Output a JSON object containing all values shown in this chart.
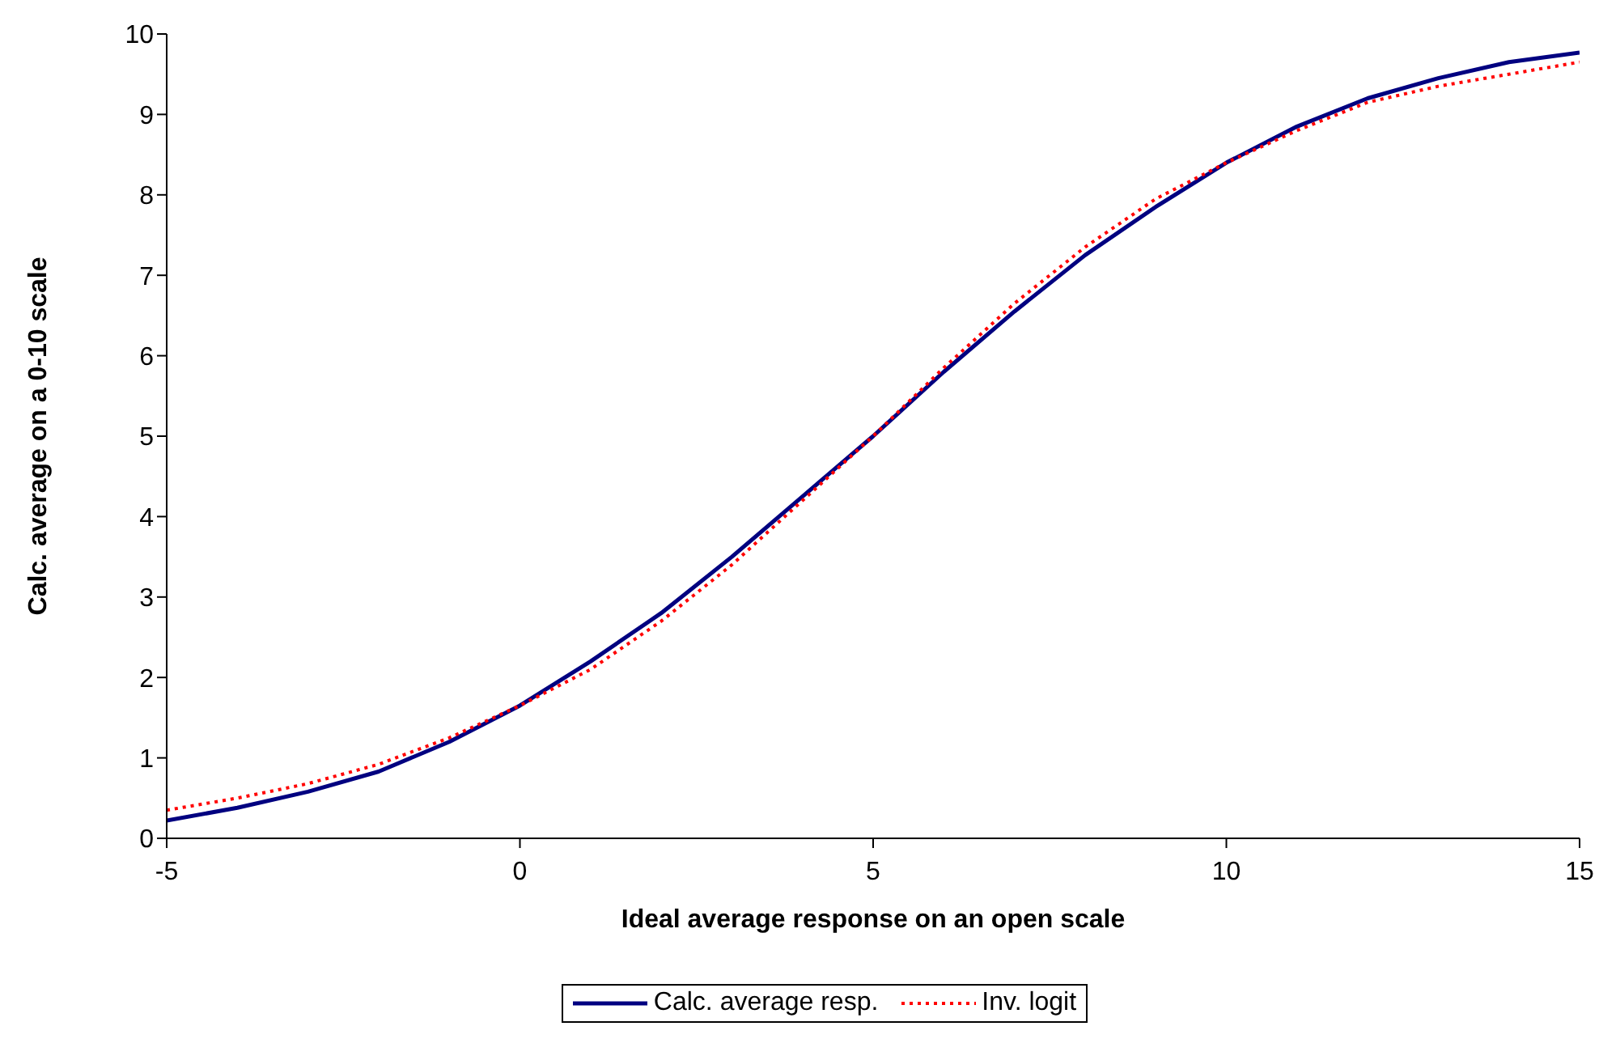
{
  "chart_data": {
    "type": "line",
    "xlabel": "Ideal average response on an open scale",
    "ylabel": "Calc. average on a  0-10 scale",
    "x": [
      -5,
      -4,
      -3,
      -2,
      -1,
      0,
      1,
      2,
      3,
      4,
      5,
      6,
      7,
      8,
      9,
      10,
      11,
      12,
      13,
      14,
      15
    ],
    "series": [
      {
        "name": "Calc. average resp.",
        "color": "#000080",
        "line_style": "solid",
        "values": [
          0.22,
          0.38,
          0.58,
          0.83,
          1.2,
          1.65,
          2.2,
          2.8,
          3.5,
          4.25,
          5.0,
          5.8,
          6.55,
          7.25,
          7.85,
          8.4,
          8.85,
          9.2,
          9.45,
          9.65,
          9.77
        ]
      },
      {
        "name": "Inv. logit",
        "color": "#ff0000",
        "line_style": "dotted",
        "values": [
          0.35,
          0.5,
          0.68,
          0.92,
          1.25,
          1.65,
          2.1,
          2.7,
          3.4,
          4.2,
          5.0,
          5.85,
          6.65,
          7.35,
          7.95,
          8.4,
          8.8,
          9.15,
          9.35,
          9.5,
          9.65
        ]
      }
    ],
    "xlim": [
      -5,
      15
    ],
    "xticks": [
      -5,
      0,
      5,
      10,
      15
    ],
    "ylim": [
      0,
      10
    ],
    "yticks": [
      0,
      1,
      2,
      3,
      4,
      5,
      6,
      7,
      8,
      9,
      10
    ],
    "grid": false,
    "legend": "bottom",
    "marker": "none"
  }
}
